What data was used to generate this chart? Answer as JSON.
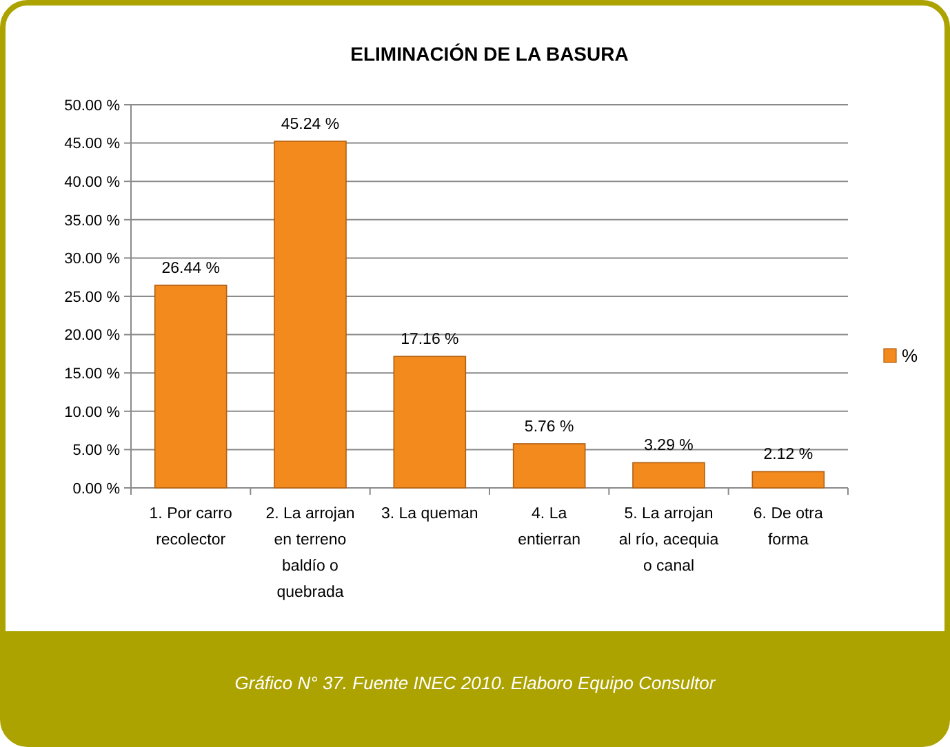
{
  "chart_data": {
    "type": "bar",
    "title": "ELIMINACIÓN DE LA BASURA",
    "categories": [
      "1. Por carro\nrecolector",
      "2. La arrojan\nen terreno\nbaldío o\nquebrada",
      "3. La queman",
      "4. La\nentierran",
      "5. La arrojan\nal río, acequia\no canal",
      "6. De otra\nforma"
    ],
    "series": [
      {
        "name": "%",
        "color": "#f28a1e",
        "values": [
          26.44,
          45.24,
          17.16,
          5.76,
          3.29,
          2.12
        ]
      }
    ],
    "value_labels": [
      "26.44 %",
      "45.24 %",
      "17.16 %",
      "5.76 %",
      "3.29 %",
      "2.12 %"
    ],
    "ylim": [
      0,
      50
    ],
    "yticks": [
      {
        "value": 0,
        "label": "0.00 %"
      },
      {
        "value": 5,
        "label": "5.00 %"
      },
      {
        "value": 10,
        "label": "10.00 %"
      },
      {
        "value": 15,
        "label": "15.00 %"
      },
      {
        "value": 20,
        "label": "20.00 %"
      },
      {
        "value": 25,
        "label": "25.00 %"
      },
      {
        "value": 30,
        "label": "30.00 %"
      },
      {
        "value": 35,
        "label": "35.00 %"
      },
      {
        "value": 40,
        "label": "40.00 %"
      },
      {
        "value": 45,
        "label": "45.00 %"
      },
      {
        "value": 50,
        "label": "50.00 %"
      }
    ],
    "grid": "y",
    "legend": "right",
    "annotations": [
      "Gráfico  N° 37.  Fuente INEC 2010. Elaboro Equipo Consultor"
    ]
  }
}
